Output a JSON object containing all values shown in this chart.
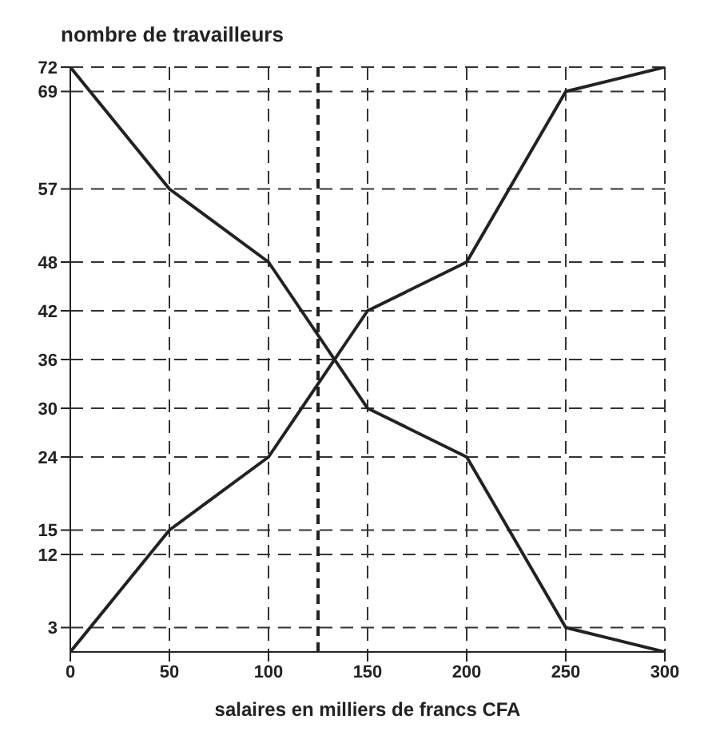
{
  "chart_data": {
    "type": "line",
    "ylabel": "nombre de travailleurs",
    "xlabel": "salaires en milliers de francs CFA",
    "x": [
      0,
      50,
      100,
      150,
      200,
      250,
      300
    ],
    "series": [
      {
        "color": "#222222",
        "values": [
          0,
          15,
          24,
          42,
          48,
          69,
          72
        ]
      },
      {
        "color": "#222222",
        "values": [
          72,
          57,
          48,
          30,
          24,
          3,
          0
        ]
      }
    ],
    "xlim": [
      0,
      300
    ],
    "xticks": [
      0,
      50,
      100,
      150,
      200,
      250,
      300
    ],
    "ylim": [
      0,
      72
    ],
    "yticks": [
      3,
      12,
      15,
      24,
      30,
      36,
      42,
      48,
      57,
      69,
      72
    ],
    "grid": true,
    "marker": "none",
    "line_style": "solid",
    "ref_lines": [
      {
        "axis": "x",
        "value": 125,
        "line_style": "dashed",
        "color": "#222222"
      }
    ]
  }
}
